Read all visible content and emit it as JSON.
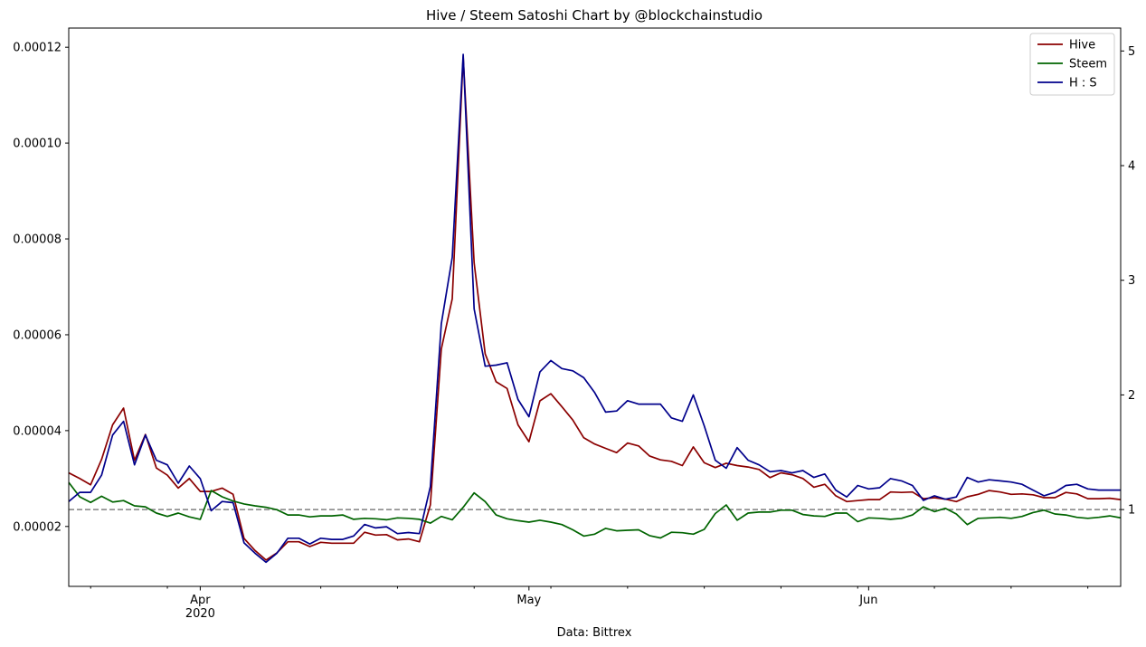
{
  "chart_data": {
    "type": "line",
    "title": "Hive / Steem Satoshi Chart by @blockchainstudio",
    "xlabel": "Data: Bittrex",
    "x_start": "2020-03-20",
    "x_end": "2020-06-24",
    "x_major_ticks": [
      {
        "date": "2020-04-01",
        "label": "Apr",
        "sublabel": "2020"
      },
      {
        "date": "2020-05-01",
        "label": "May",
        "sublabel": ""
      },
      {
        "date": "2020-06-01",
        "label": "Jun",
        "sublabel": ""
      }
    ],
    "y_left": {
      "range": [
        7.5e-06,
        0.000124
      ],
      "ticks": [
        2e-05,
        4e-05,
        6e-05,
        8e-05,
        0.0001,
        0.00012
      ],
      "tick_labels": [
        "0.00002",
        "0.00004",
        "0.00006",
        "0.00008",
        "0.00010",
        "0.00012"
      ]
    },
    "y_right": {
      "range": [
        0.33,
        5.2
      ],
      "ticks": [
        1,
        2,
        3,
        4,
        5
      ],
      "tick_labels": [
        "1",
        "2",
        "3",
        "4",
        "5"
      ]
    },
    "reference_line": {
      "axis": "right",
      "value": 1,
      "style": "dashed",
      "color": "#808080"
    },
    "legend": {
      "placement": "top-right"
    },
    "series": [
      {
        "name": "Hive",
        "axis": "left",
        "color": "#8b0000",
        "values": [
          3.12e-05,
          3e-05,
          2.87e-05,
          3.4e-05,
          4.12e-05,
          4.47e-05,
          3.38e-05,
          3.92e-05,
          3.22e-05,
          3.07e-05,
          2.8e-05,
          3e-05,
          2.73e-05,
          2.73e-05,
          2.8e-05,
          2.67e-05,
          1.75e-05,
          1.5e-05,
          1.3e-05,
          1.45e-05,
          1.68e-05,
          1.68e-05,
          1.58e-05,
          1.67e-05,
          1.65e-05,
          1.65e-05,
          1.65e-05,
          1.88e-05,
          1.82e-05,
          1.83e-05,
          1.72e-05,
          1.74e-05,
          1.68e-05,
          2.45e-05,
          5.7e-05,
          6.75e-05,
          0.000118,
          7.5e-05,
          5.6e-05,
          5.02e-05,
          4.88e-05,
          4.12e-05,
          3.77e-05,
          4.62e-05,
          4.77e-05,
          4.5e-05,
          4.22e-05,
          3.85e-05,
          3.72e-05,
          3.63e-05,
          3.54e-05,
          3.74e-05,
          3.68e-05,
          3.47e-05,
          3.39e-05,
          3.36e-05,
          3.27e-05,
          3.66e-05,
          3.33e-05,
          3.23e-05,
          3.32e-05,
          3.27e-05,
          3.24e-05,
          3.19e-05,
          3.02e-05,
          3.12e-05,
          3.08e-05,
          3e-05,
          2.82e-05,
          2.88e-05,
          2.64e-05,
          2.52e-05,
          2.54e-05,
          2.56e-05,
          2.56e-05,
          2.72e-05,
          2.71e-05,
          2.72e-05,
          2.58e-05,
          2.6e-05,
          2.57e-05,
          2.52e-05,
          2.62e-05,
          2.67e-05,
          2.75e-05,
          2.72e-05,
          2.67e-05,
          2.68e-05,
          2.66e-05,
          2.6e-05,
          2.6e-05,
          2.71e-05,
          2.68e-05,
          2.58e-05,
          2.58e-05,
          2.59e-05,
          2.56e-05
        ]
      },
      {
        "name": "Steem",
        "axis": "left",
        "color": "#006400",
        "values": [
          2.92e-05,
          2.62e-05,
          2.5e-05,
          2.63e-05,
          2.51e-05,
          2.54e-05,
          2.43e-05,
          2.41e-05,
          2.28e-05,
          2.21e-05,
          2.28e-05,
          2.2e-05,
          2.15e-05,
          2.75e-05,
          2.62e-05,
          2.53e-05,
          2.47e-05,
          2.43e-05,
          2.4e-05,
          2.35e-05,
          2.24e-05,
          2.24e-05,
          2.2e-05,
          2.22e-05,
          2.22e-05,
          2.24e-05,
          2.15e-05,
          2.17e-05,
          2.16e-05,
          2.14e-05,
          2.18e-05,
          2.17e-05,
          2.15e-05,
          2.07e-05,
          2.21e-05,
          2.14e-05,
          2.4e-05,
          2.7e-05,
          2.52e-05,
          2.24e-05,
          2.16e-05,
          2.12e-05,
          2.09e-05,
          2.13e-05,
          2.09e-05,
          2.04e-05,
          1.93e-05,
          1.8e-05,
          1.84e-05,
          1.96e-05,
          1.91e-05,
          1.92e-05,
          1.93e-05,
          1.81e-05,
          1.76e-05,
          1.88e-05,
          1.87e-05,
          1.84e-05,
          1.94e-05,
          2.27e-05,
          2.45e-05,
          2.13e-05,
          2.28e-05,
          2.3e-05,
          2.3e-05,
          2.34e-05,
          2.34e-05,
          2.25e-05,
          2.22e-05,
          2.21e-05,
          2.28e-05,
          2.28e-05,
          2.1e-05,
          2.18e-05,
          2.17e-05,
          2.15e-05,
          2.17e-05,
          2.24e-05,
          2.41e-05,
          2.31e-05,
          2.38e-05,
          2.26e-05,
          2.04e-05,
          2.17e-05,
          2.18e-05,
          2.19e-05,
          2.17e-05,
          2.21e-05,
          2.29e-05,
          2.34e-05,
          2.26e-05,
          2.24e-05,
          2.19e-05,
          2.17e-05,
          2.19e-05,
          2.22e-05,
          2.18e-05
        ]
      },
      {
        "name": "H : S",
        "axis": "right",
        "color": "#00008b",
        "values": [
          1.07,
          1.15,
          1.15,
          1.3,
          1.65,
          1.77,
          1.39,
          1.65,
          1.43,
          1.39,
          1.23,
          1.38,
          1.27,
          0.99,
          1.07,
          1.06,
          0.71,
          0.62,
          0.54,
          0.62,
          0.75,
          0.75,
          0.7,
          0.75,
          0.74,
          0.74,
          0.77,
          0.87,
          0.84,
          0.85,
          0.79,
          0.8,
          0.79,
          1.2,
          2.62,
          3.2,
          4.97,
          2.75,
          2.25,
          2.26,
          2.28,
          1.96,
          1.81,
          2.2,
          2.3,
          2.23,
          2.21,
          2.15,
          2.02,
          1.85,
          1.86,
          1.95,
          1.92,
          1.92,
          1.92,
          1.8,
          1.77,
          2.0,
          1.73,
          1.43,
          1.36,
          1.54,
          1.43,
          1.39,
          1.33,
          1.34,
          1.32,
          1.34,
          1.28,
          1.31,
          1.17,
          1.11,
          1.21,
          1.18,
          1.19,
          1.27,
          1.25,
          1.21,
          1.08,
          1.12,
          1.09,
          1.11,
          1.28,
          1.24,
          1.26,
          1.25,
          1.24,
          1.22,
          1.17,
          1.12,
          1.15,
          1.21,
          1.22,
          1.18,
          1.17,
          1.17,
          1.17
        ]
      }
    ]
  }
}
